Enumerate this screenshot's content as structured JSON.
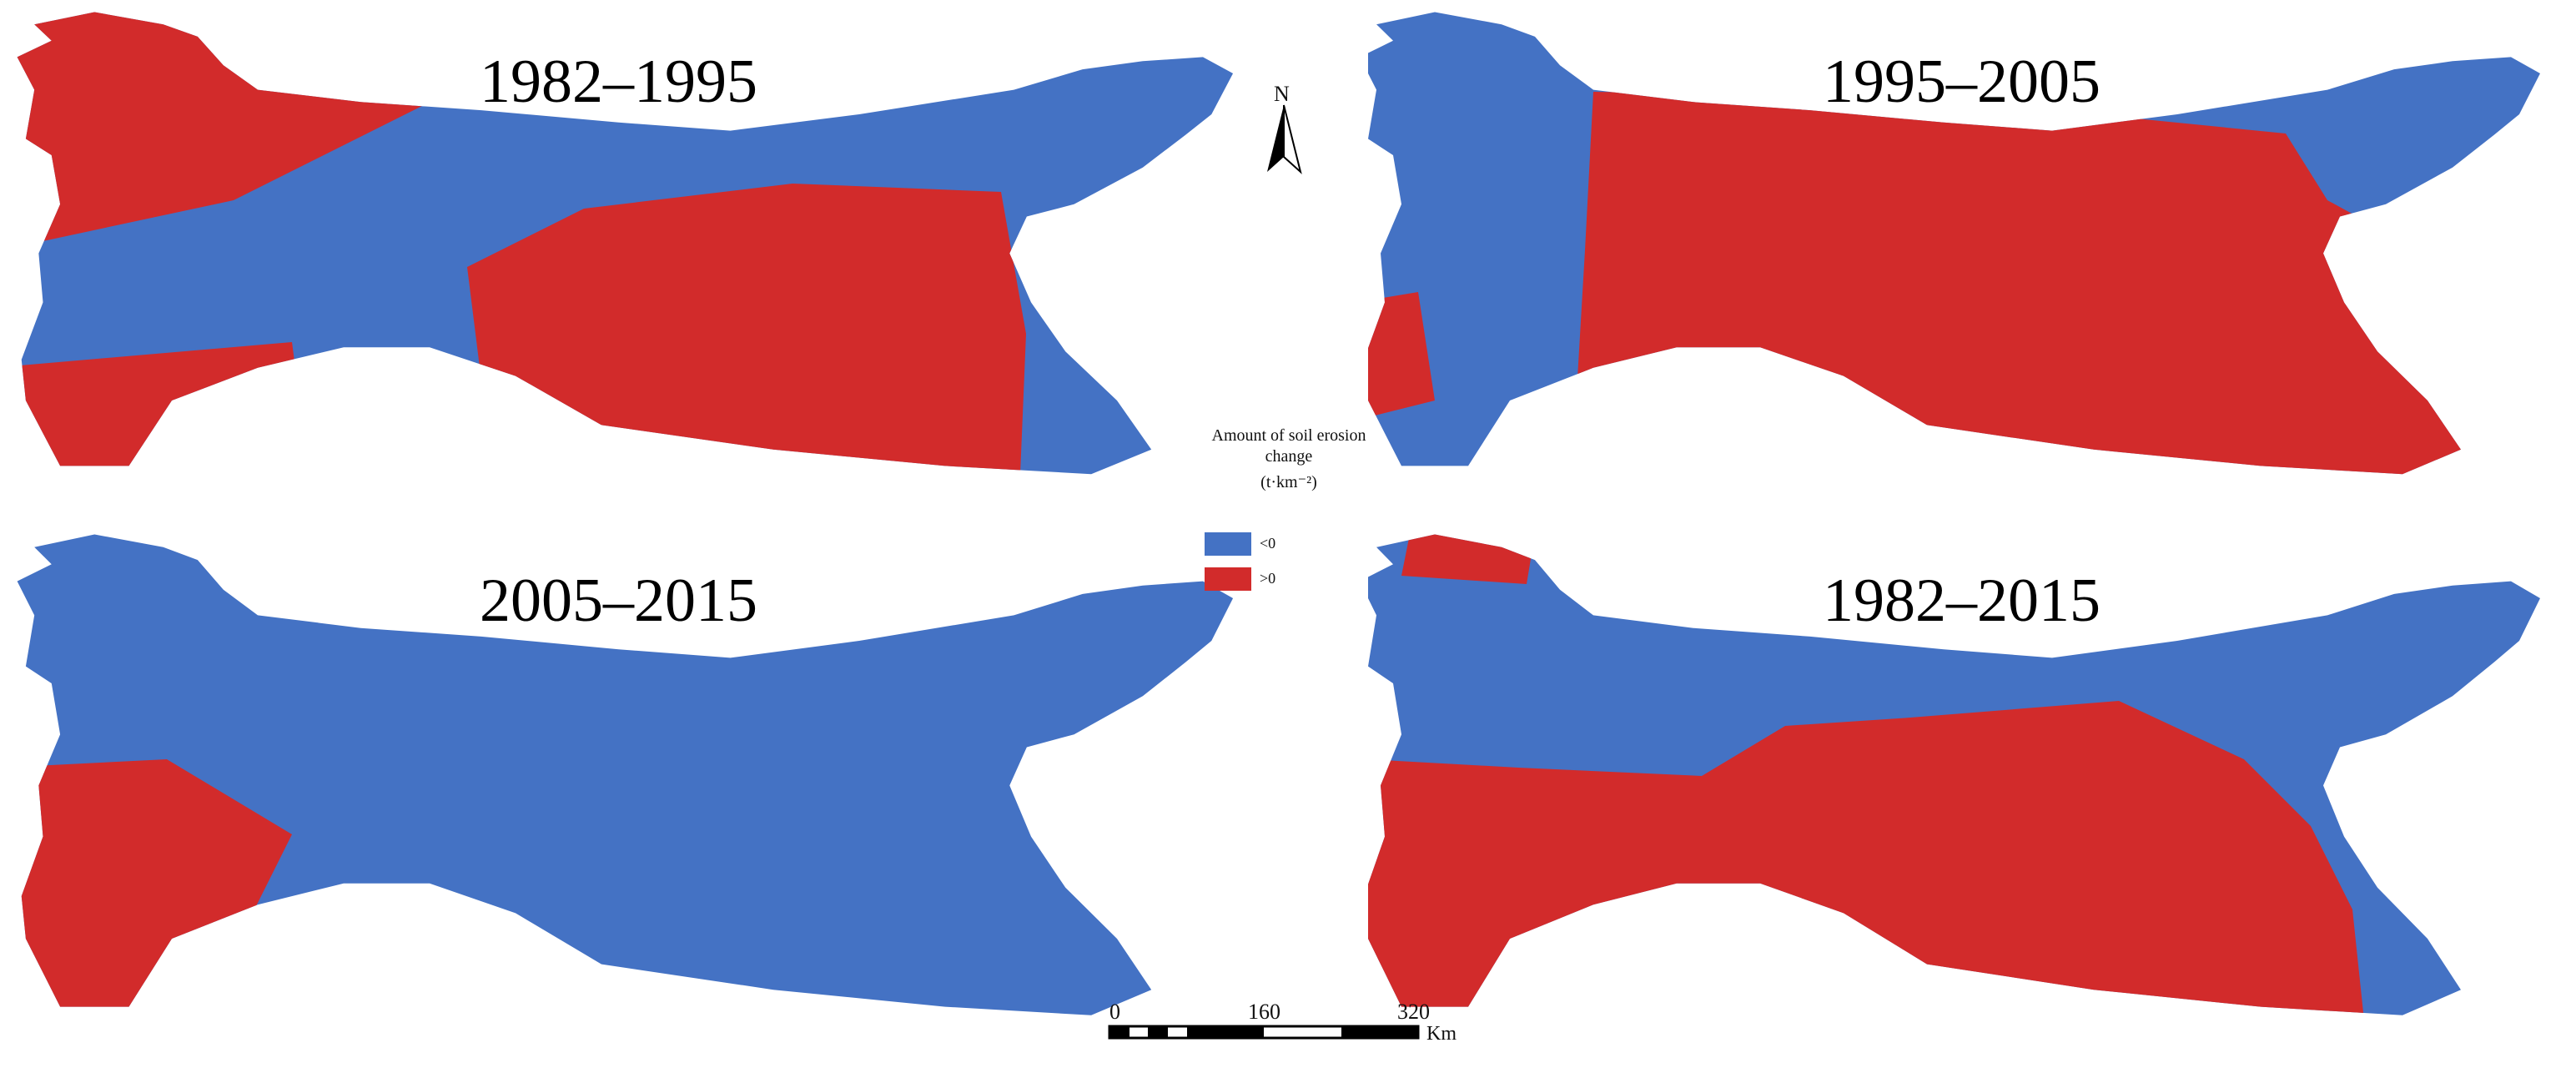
{
  "colors": {
    "decrease": "#4472c4",
    "increase": "#d22b2b"
  },
  "panels": [
    {
      "title": "1982–1995"
    },
    {
      "title": "1995–2005"
    },
    {
      "title": "2005–2015"
    },
    {
      "title": "1982–2015"
    }
  ],
  "north_arrow": {
    "label": "N"
  },
  "legend": {
    "title": "Amount of soil erosion change",
    "unit": "(t·km⁻²)",
    "items": [
      {
        "label": "<0",
        "color": "#4472c4"
      },
      {
        "label": ">0",
        "color": "#d22b2b"
      }
    ]
  },
  "scale_bar": {
    "ticks": [
      "0",
      "160",
      "320"
    ],
    "unit": "Km"
  }
}
